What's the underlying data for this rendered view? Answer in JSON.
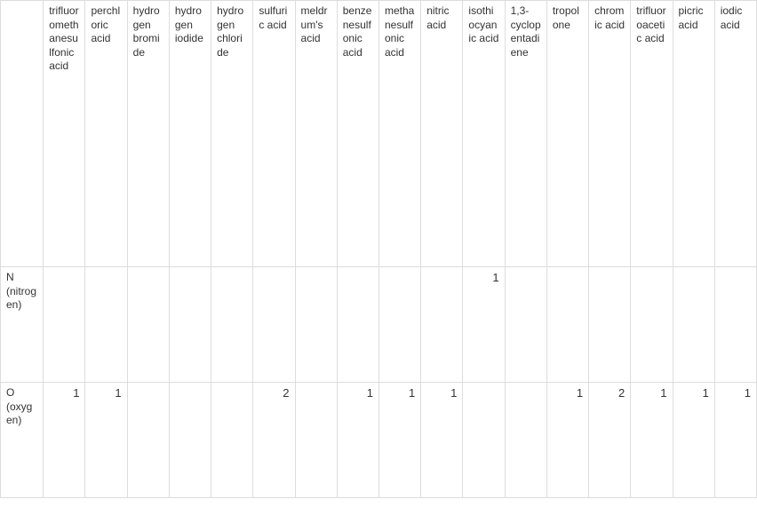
{
  "columns": [
    {
      "label": "trifluoromethanesulfonic acid"
    },
    {
      "label": "perchloric acid"
    },
    {
      "label": "hydrogen bromide"
    },
    {
      "label": "hydrogen iodide"
    },
    {
      "label": "hydrogen chloride"
    },
    {
      "label": "sulfuric acid"
    },
    {
      "label": "meldrum's acid"
    },
    {
      "label": "benzenesulfonic acid"
    },
    {
      "label": "methanesulfonic acid"
    },
    {
      "label": "nitric acid"
    },
    {
      "label": "isothiocyanic acid"
    },
    {
      "label": "1,3-cyclopentadiene"
    },
    {
      "label": "tropolone"
    },
    {
      "label": "chromic acid"
    },
    {
      "label": "trifluoroacetic acid"
    },
    {
      "label": "picric acid"
    },
    {
      "label": "iodic acid"
    }
  ],
  "rows": [
    {
      "label": "N (nitrogen)",
      "values": [
        "",
        "",
        "",
        "",
        "",
        "",
        "",
        "",
        "",
        "",
        "1",
        "",
        "",
        "",
        "",
        "",
        ""
      ]
    },
    {
      "label": "O (oxygen)",
      "values": [
        "1",
        "1",
        "",
        "",
        "",
        "2",
        "",
        "1",
        "1",
        "1",
        "",
        "",
        "1",
        "2",
        "1",
        "1",
        "1"
      ]
    }
  ],
  "colors": {
    "border": "#dddddd",
    "text": "#333333",
    "background": "#ffffff"
  }
}
